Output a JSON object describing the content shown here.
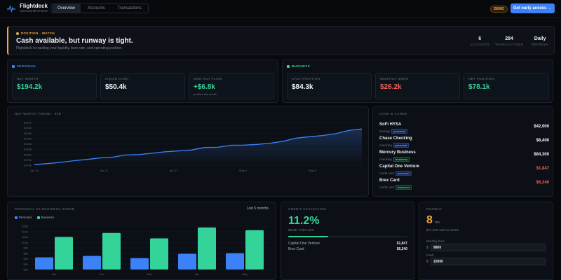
{
  "app": {
    "name": "Flightdeck",
    "tagline": "Operational Finance"
  },
  "nav": {
    "tabs": [
      "Overview",
      "Accounts",
      "Transactions"
    ],
    "active": 0
  },
  "header": {
    "demo_badge": "DEMO",
    "cta_label": "Get early access →"
  },
  "alert": {
    "tag": "POSITION · WATCH",
    "title": "Cash available, but runway is tight.",
    "subtitle": "Flightdeck is tracking your liquidity, burn rate, and operating position.",
    "stats": [
      {
        "value": "6",
        "label": "ACCOUNTS"
      },
      {
        "value": "284",
        "label": "TRANSACTIONS"
      },
      {
        "value": "Daily",
        "label": "REFRESH"
      }
    ],
    "accent": "#f0a93a"
  },
  "personal": {
    "title": "PERSONAL",
    "color": "#3b82f6",
    "metrics": [
      {
        "label": "NET WORTH",
        "value": "$194.2k",
        "note": ""
      },
      {
        "label": "LIQUID CASH",
        "value": "$50.4k",
        "note": ""
      },
      {
        "label": "MONTHLY FLOW",
        "value": "+$6.8k",
        "note": "positive this month"
      }
    ]
  },
  "business": {
    "title": "BUSINESS",
    "color": "#34d399",
    "metrics": [
      {
        "label": "CASH POSITION",
        "value": "$84.3k"
      },
      {
        "label": "MONTHLY BURN",
        "value": "$26.2k"
      },
      {
        "label": "NET POSITION",
        "value": "$78.1k"
      }
    ]
  },
  "net_worth_chart": {
    "title": "NET WORTH TREND · 90D",
    "chart_data": {
      "type": "area",
      "x_tick_labels": [
        "Apr 16",
        "Apr 21",
        "Apr 27",
        "May 3",
        "May 9"
      ],
      "y_tick_labels": [
        "$170k",
        "$175k",
        "$180k",
        "$185k",
        "$190k",
        "$195k",
        "$200k",
        "$205k",
        "$210k"
      ],
      "ylim": [
        170,
        210
      ],
      "x": [
        0,
        4,
        8,
        12,
        16,
        20,
        24,
        28,
        32,
        36,
        40,
        44,
        48,
        52,
        56,
        60,
        64,
        68,
        72,
        76,
        80,
        84,
        88,
        92,
        96,
        100
      ],
      "values": [
        170.5,
        171.5,
        172.6,
        174.2,
        175.4,
        176.8,
        177.6,
        179.6,
        180.0,
        181.2,
        182.6,
        183.4,
        184.2,
        186.6,
        186.8,
        188.7,
        188.8,
        189.5,
        190.6,
        192.4,
        195.4,
        196.7,
        197.8,
        199.5,
        202.5,
        204.0
      ],
      "color": "#3b82f6"
    }
  },
  "cash_cards": {
    "title": "CASH & CARDS",
    "accounts": [
      {
        "name": "SoFi HYSA",
        "type": "savings",
        "tag": "personal",
        "amount": "$42,000",
        "negative": false
      },
      {
        "name": "Chase Checking",
        "type": "checking",
        "tag": "personal",
        "amount": "$8,400",
        "negative": false
      },
      {
        "name": "Mercury Business",
        "type": "checking",
        "tag": "business",
        "amount": "$84,300",
        "negative": false
      },
      {
        "name": "Capital One Venture",
        "type": "credit card",
        "tag": "personal",
        "amount": "$1,847",
        "negative": true
      },
      {
        "name": "Brex Card",
        "type": "credit card",
        "tag": "business",
        "amount": "$6,240",
        "negative": true
      }
    ]
  },
  "spend_chart": {
    "title": "PERSONAL VS BUSINESS SPEND",
    "range_label": "Last 5 months",
    "chart_data": {
      "type": "bar",
      "categories": [
        "Jan",
        "Feb",
        "Mar",
        "Apr",
        "May"
      ],
      "series": [
        {
          "name": "Personal",
          "values": [
            4.5,
            5.0,
            4.2,
            5.8,
            6.0
          ],
          "color": "#3b82f6"
        },
        {
          "name": "Business",
          "values": [
            12.0,
            13.5,
            11.5,
            15.5,
            14.5
          ],
          "color": "#34d399"
        }
      ],
      "y_tick_labels": [
        "$0k",
        "$2k",
        "$4k",
        "$6k",
        "$8k",
        "$10k",
        "$12k",
        "$14k",
        "$16k"
      ],
      "ylim": [
        0,
        16
      ]
    }
  },
  "credit": {
    "title": "CREDIT UTILIZATION",
    "value": "11.2%",
    "fraction": 0.112,
    "subtitle": "$8,087 of $72,000",
    "rows": [
      {
        "name": "Capital One Venture",
        "amount": "$1,847"
      },
      {
        "name": "Brex Card",
        "amount": "$6,240"
      }
    ]
  },
  "runway": {
    "title": "RUNWAY",
    "value": "8",
    "unit": "mo",
    "subtitle": "$74,300 cash to stretch",
    "inputs": [
      {
        "label": "Monthly burn",
        "prefix": "$",
        "value": "9800"
      },
      {
        "label": "Cash",
        "prefix": "$",
        "value": "10000"
      }
    ]
  }
}
